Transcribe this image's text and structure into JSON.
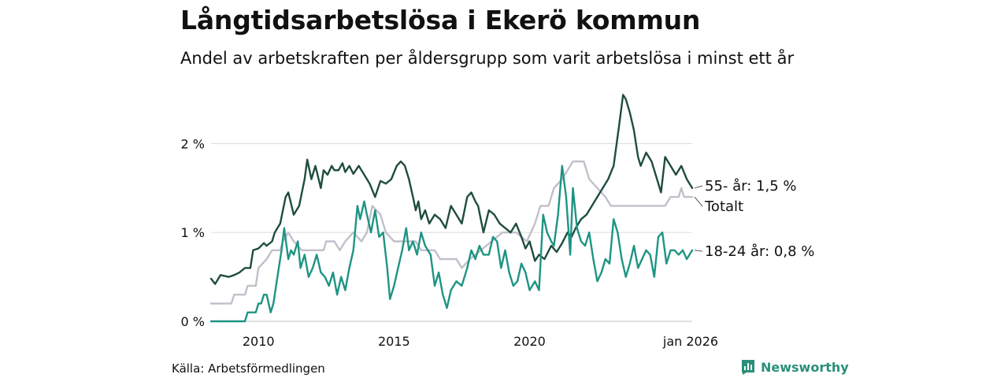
{
  "title": "Långtidsarbetslösa i Ekerö kommun",
  "subtitle": "Andel av arbetskraften per åldersgrupp som varit arbetslösa i minst ett år",
  "source": "Källa: Arbetsförmedlingen",
  "brand": "Newsworthy",
  "chart_data": {
    "type": "line",
    "y_unit": "%",
    "ylim": [
      0,
      2.5
    ],
    "xlim": [
      2008.25,
      2026.0
    ],
    "y_ticks": [
      {
        "value": 0,
        "label": "0 %"
      },
      {
        "value": 1,
        "label": "1 %"
      },
      {
        "value": 2,
        "label": "2 %"
      }
    ],
    "x_ticks": [
      {
        "value": 2010,
        "label": "2010"
      },
      {
        "value": 2015,
        "label": "2015"
      },
      {
        "value": 2020,
        "label": "2020"
      },
      {
        "value": 2026,
        "label": "jan 2026"
      }
    ],
    "series": [
      {
        "name": "Totalt",
        "label": "Totalt",
        "color": "#c2bfcb",
        "points": [
          [
            2008.25,
            0.2
          ],
          [
            2009.0,
            0.2
          ],
          [
            2009.1,
            0.3
          ],
          [
            2009.5,
            0.3
          ],
          [
            2009.6,
            0.4
          ],
          [
            2009.9,
            0.4
          ],
          [
            2010.0,
            0.6
          ],
          [
            2010.3,
            0.7
          ],
          [
            2010.5,
            0.8
          ],
          [
            2010.8,
            0.8
          ],
          [
            2010.9,
            0.9
          ],
          [
            2011.1,
            1.0
          ],
          [
            2011.3,
            0.9
          ],
          [
            2011.6,
            0.8
          ],
          [
            2012.4,
            0.8
          ],
          [
            2012.5,
            0.9
          ],
          [
            2012.8,
            0.9
          ],
          [
            2013.0,
            0.8
          ],
          [
            2013.2,
            0.9
          ],
          [
            2013.5,
            1.0
          ],
          [
            2013.8,
            0.9
          ],
          [
            2014.0,
            1.0
          ],
          [
            2014.2,
            1.3
          ],
          [
            2014.5,
            1.2
          ],
          [
            2014.7,
            1.0
          ],
          [
            2015.0,
            0.9
          ],
          [
            2015.8,
            0.9
          ],
          [
            2016.0,
            0.8
          ],
          [
            2016.5,
            0.8
          ],
          [
            2016.7,
            0.7
          ],
          [
            2017.3,
            0.7
          ],
          [
            2017.5,
            0.6
          ],
          [
            2017.8,
            0.7
          ],
          [
            2018.2,
            0.8
          ],
          [
            2018.6,
            0.9
          ],
          [
            2019.0,
            1.0
          ],
          [
            2019.5,
            1.0
          ],
          [
            2019.9,
            0.9
          ],
          [
            2020.2,
            1.1
          ],
          [
            2020.4,
            1.3
          ],
          [
            2020.7,
            1.3
          ],
          [
            2020.9,
            1.5
          ],
          [
            2021.2,
            1.6
          ],
          [
            2021.4,
            1.7
          ],
          [
            2021.6,
            1.8
          ],
          [
            2022.0,
            1.8
          ],
          [
            2022.2,
            1.6
          ],
          [
            2022.5,
            1.5
          ],
          [
            2022.8,
            1.4
          ],
          [
            2023.0,
            1.3
          ],
          [
            2024.0,
            1.3
          ],
          [
            2025.0,
            1.3
          ],
          [
            2025.2,
            1.4
          ],
          [
            2025.5,
            1.4
          ],
          [
            2025.6,
            1.5
          ],
          [
            2025.7,
            1.4
          ],
          [
            2026.0,
            1.4
          ]
        ]
      },
      {
        "name": "55- år",
        "label": "55- år: 1,5 %",
        "color": "#1f4d3f",
        "points": [
          [
            2008.25,
            0.48
          ],
          [
            2008.4,
            0.42
          ],
          [
            2008.6,
            0.52
          ],
          [
            2008.9,
            0.5
          ],
          [
            2009.1,
            0.52
          ],
          [
            2009.3,
            0.55
          ],
          [
            2009.5,
            0.6
          ],
          [
            2009.7,
            0.6
          ],
          [
            2009.8,
            0.8
          ],
          [
            2010.0,
            0.82
          ],
          [
            2010.2,
            0.88
          ],
          [
            2010.3,
            0.85
          ],
          [
            2010.5,
            0.9
          ],
          [
            2010.6,
            1.0
          ],
          [
            2010.8,
            1.1
          ],
          [
            2011.0,
            1.4
          ],
          [
            2011.1,
            1.45
          ],
          [
            2011.3,
            1.2
          ],
          [
            2011.5,
            1.3
          ],
          [
            2011.7,
            1.6
          ],
          [
            2011.8,
            1.82
          ],
          [
            2011.95,
            1.6
          ],
          [
            2012.1,
            1.75
          ],
          [
            2012.3,
            1.5
          ],
          [
            2012.4,
            1.7
          ],
          [
            2012.55,
            1.65
          ],
          [
            2012.7,
            1.75
          ],
          [
            2012.8,
            1.7
          ],
          [
            2012.95,
            1.7
          ],
          [
            2013.1,
            1.78
          ],
          [
            2013.2,
            1.68
          ],
          [
            2013.35,
            1.75
          ],
          [
            2013.5,
            1.66
          ],
          [
            2013.7,
            1.75
          ],
          [
            2013.9,
            1.65
          ],
          [
            2014.1,
            1.55
          ],
          [
            2014.3,
            1.4
          ],
          [
            2014.5,
            1.58
          ],
          [
            2014.7,
            1.55
          ],
          [
            2014.9,
            1.6
          ],
          [
            2015.1,
            1.75
          ],
          [
            2015.25,
            1.8
          ],
          [
            2015.4,
            1.75
          ],
          [
            2015.55,
            1.6
          ],
          [
            2015.7,
            1.4
          ],
          [
            2015.8,
            1.25
          ],
          [
            2015.9,
            1.35
          ],
          [
            2016.0,
            1.15
          ],
          [
            2016.15,
            1.25
          ],
          [
            2016.3,
            1.1
          ],
          [
            2016.5,
            1.2
          ],
          [
            2016.7,
            1.15
          ],
          [
            2016.9,
            1.05
          ],
          [
            2017.1,
            1.3
          ],
          [
            2017.3,
            1.2
          ],
          [
            2017.5,
            1.1
          ],
          [
            2017.7,
            1.4
          ],
          [
            2017.85,
            1.45
          ],
          [
            2018.0,
            1.35
          ],
          [
            2018.1,
            1.3
          ],
          [
            2018.3,
            1.0
          ],
          [
            2018.5,
            1.25
          ],
          [
            2018.7,
            1.2
          ],
          [
            2018.9,
            1.1
          ],
          [
            2019.1,
            1.05
          ],
          [
            2019.3,
            1.0
          ],
          [
            2019.5,
            1.1
          ],
          [
            2019.7,
            0.95
          ],
          [
            2019.85,
            0.82
          ],
          [
            2020.0,
            0.9
          ],
          [
            2020.2,
            0.68
          ],
          [
            2020.35,
            0.75
          ],
          [
            2020.55,
            0.7
          ],
          [
            2020.8,
            0.85
          ],
          [
            2021.0,
            0.78
          ],
          [
            2021.2,
            0.88
          ],
          [
            2021.4,
            1.0
          ],
          [
            2021.55,
            0.95
          ],
          [
            2021.7,
            1.05
          ],
          [
            2021.9,
            1.15
          ],
          [
            2022.1,
            1.2
          ],
          [
            2022.3,
            1.3
          ],
          [
            2022.5,
            1.4
          ],
          [
            2022.7,
            1.5
          ],
          [
            2022.9,
            1.6
          ],
          [
            2023.1,
            1.75
          ],
          [
            2023.3,
            2.2
          ],
          [
            2023.45,
            2.55
          ],
          [
            2023.55,
            2.5
          ],
          [
            2023.7,
            2.35
          ],
          [
            2023.85,
            2.15
          ],
          [
            2024.0,
            1.85
          ],
          [
            2024.1,
            1.75
          ],
          [
            2024.3,
            1.9
          ],
          [
            2024.5,
            1.8
          ],
          [
            2024.7,
            1.6
          ],
          [
            2024.85,
            1.45
          ],
          [
            2025.0,
            1.85
          ],
          [
            2025.2,
            1.75
          ],
          [
            2025.4,
            1.65
          ],
          [
            2025.6,
            1.75
          ],
          [
            2025.8,
            1.6
          ],
          [
            2026.0,
            1.5
          ]
        ]
      },
      {
        "name": "18-24 år",
        "label": "18-24 år: 0,8 %",
        "color": "#1e9483",
        "points": [
          [
            2008.25,
            0.0
          ],
          [
            2009.5,
            0.0
          ],
          [
            2009.6,
            0.1
          ],
          [
            2009.9,
            0.1
          ],
          [
            2010.0,
            0.2
          ],
          [
            2010.1,
            0.2
          ],
          [
            2010.2,
            0.3
          ],
          [
            2010.3,
            0.3
          ],
          [
            2010.45,
            0.1
          ],
          [
            2010.55,
            0.2
          ],
          [
            2010.7,
            0.5
          ],
          [
            2010.85,
            0.8
          ],
          [
            2010.95,
            1.05
          ],
          [
            2011.1,
            0.7
          ],
          [
            2011.2,
            0.8
          ],
          [
            2011.3,
            0.75
          ],
          [
            2011.45,
            0.9
          ],
          [
            2011.55,
            0.6
          ],
          [
            2011.7,
            0.75
          ],
          [
            2011.85,
            0.5
          ],
          [
            2012.0,
            0.6
          ],
          [
            2012.15,
            0.75
          ],
          [
            2012.3,
            0.55
          ],
          [
            2012.45,
            0.5
          ],
          [
            2012.6,
            0.4
          ],
          [
            2012.75,
            0.55
          ],
          [
            2012.9,
            0.3
          ],
          [
            2013.05,
            0.5
          ],
          [
            2013.2,
            0.35
          ],
          [
            2013.35,
            0.6
          ],
          [
            2013.5,
            0.8
          ],
          [
            2013.65,
            1.3
          ],
          [
            2013.75,
            1.15
          ],
          [
            2013.9,
            1.35
          ],
          [
            2014.0,
            1.2
          ],
          [
            2014.15,
            1.0
          ],
          [
            2014.3,
            1.25
          ],
          [
            2014.45,
            0.95
          ],
          [
            2014.6,
            1.0
          ],
          [
            2014.75,
            0.6
          ],
          [
            2014.85,
            0.25
          ],
          [
            2015.0,
            0.4
          ],
          [
            2015.15,
            0.6
          ],
          [
            2015.3,
            0.8
          ],
          [
            2015.45,
            1.05
          ],
          [
            2015.55,
            0.8
          ],
          [
            2015.7,
            0.9
          ],
          [
            2015.85,
            0.75
          ],
          [
            2016.0,
            1.0
          ],
          [
            2016.15,
            0.85
          ],
          [
            2016.35,
            0.75
          ],
          [
            2016.5,
            0.4
          ],
          [
            2016.65,
            0.55
          ],
          [
            2016.8,
            0.3
          ],
          [
            2016.95,
            0.15
          ],
          [
            2017.1,
            0.35
          ],
          [
            2017.3,
            0.45
          ],
          [
            2017.5,
            0.4
          ],
          [
            2017.7,
            0.6
          ],
          [
            2017.85,
            0.8
          ],
          [
            2018.0,
            0.7
          ],
          [
            2018.15,
            0.85
          ],
          [
            2018.3,
            0.75
          ],
          [
            2018.5,
            0.75
          ],
          [
            2018.65,
            0.95
          ],
          [
            2018.8,
            0.9
          ],
          [
            2018.95,
            0.6
          ],
          [
            2019.1,
            0.8
          ],
          [
            2019.25,
            0.55
          ],
          [
            2019.4,
            0.4
          ],
          [
            2019.55,
            0.45
          ],
          [
            2019.7,
            0.65
          ],
          [
            2019.85,
            0.55
          ],
          [
            2020.0,
            0.35
          ],
          [
            2020.2,
            0.45
          ],
          [
            2020.35,
            0.35
          ],
          [
            2020.5,
            1.2
          ],
          [
            2020.65,
            1.0
          ],
          [
            2020.8,
            0.9
          ],
          [
            2020.9,
            0.85
          ],
          [
            2021.05,
            1.2
          ],
          [
            2021.2,
            1.75
          ],
          [
            2021.35,
            1.4
          ],
          [
            2021.5,
            0.75
          ],
          [
            2021.6,
            1.5
          ],
          [
            2021.75,
            1.05
          ],
          [
            2021.9,
            0.9
          ],
          [
            2022.05,
            0.85
          ],
          [
            2022.2,
            1.0
          ],
          [
            2022.35,
            0.7
          ],
          [
            2022.5,
            0.45
          ],
          [
            2022.65,
            0.55
          ],
          [
            2022.8,
            0.7
          ],
          [
            2022.95,
            0.65
          ],
          [
            2023.1,
            1.15
          ],
          [
            2023.25,
            1.0
          ],
          [
            2023.4,
            0.7
          ],
          [
            2023.55,
            0.5
          ],
          [
            2023.7,
            0.65
          ],
          [
            2023.85,
            0.85
          ],
          [
            2024.0,
            0.6
          ],
          [
            2024.15,
            0.7
          ],
          [
            2024.3,
            0.8
          ],
          [
            2024.45,
            0.75
          ],
          [
            2024.6,
            0.5
          ],
          [
            2024.75,
            0.95
          ],
          [
            2024.9,
            1.0
          ],
          [
            2025.05,
            0.65
          ],
          [
            2025.2,
            0.8
          ],
          [
            2025.35,
            0.8
          ],
          [
            2025.5,
            0.75
          ],
          [
            2025.65,
            0.8
          ],
          [
            2025.8,
            0.7
          ],
          [
            2026.0,
            0.8
          ]
        ]
      }
    ]
  }
}
